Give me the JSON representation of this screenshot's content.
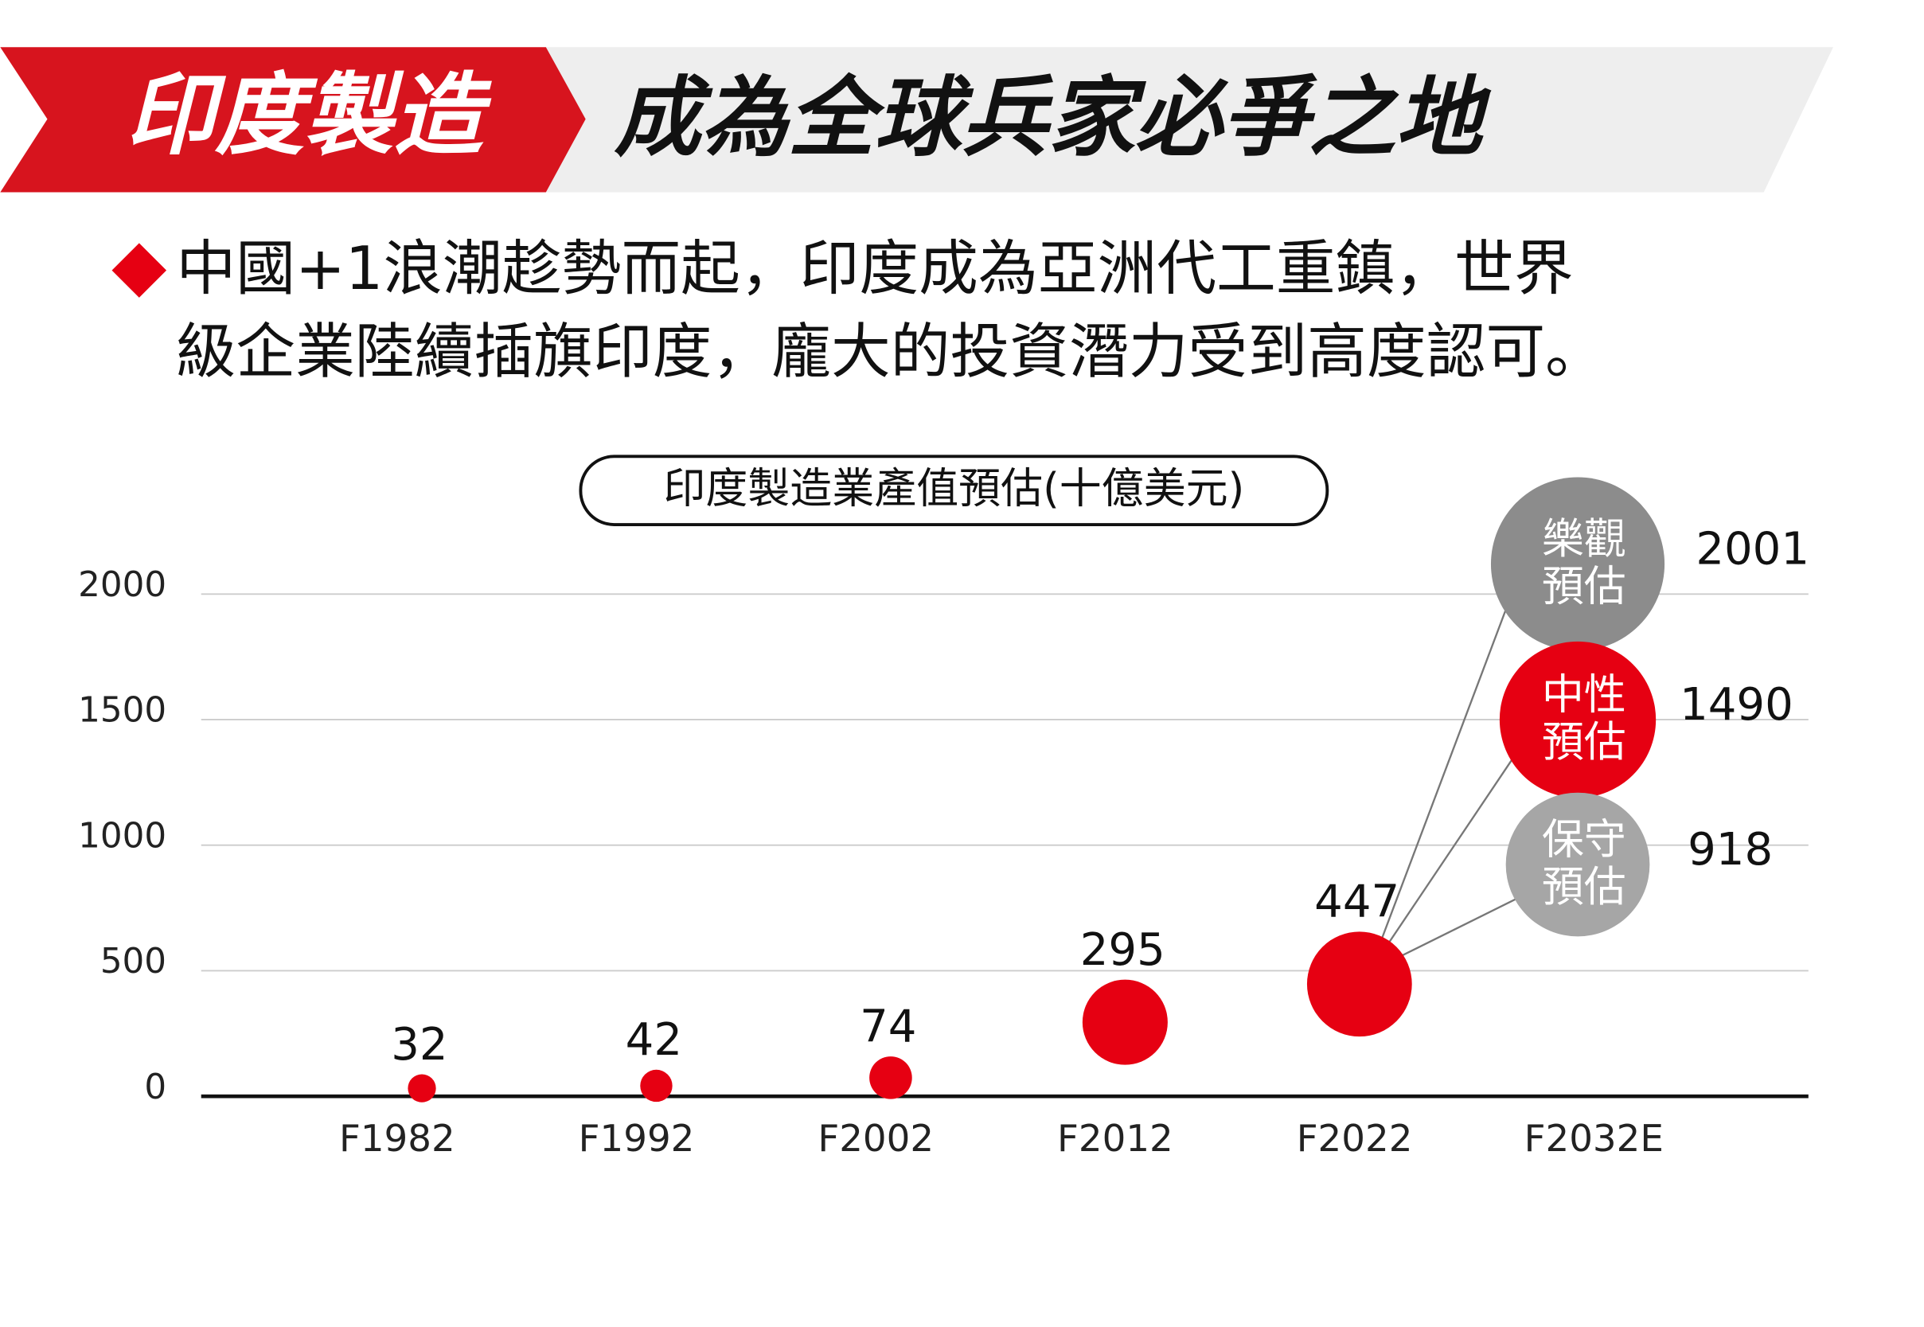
{
  "header": {
    "tag": "印度製造",
    "title": "成為全球兵家必爭之地"
  },
  "bullet": [
    "中國+1浪潮趁勢而起，印度成為亞洲代工重鎮，世界",
    "級企業陸續插旗印度，龐大的投資潛力受到高度認可。"
  ],
  "chart_data": {
    "type": "bubble",
    "title": "印度製造業產值預估(十億美元)",
    "categories": [
      "F1982",
      "F1992",
      "F2002",
      "F2012",
      "F2022",
      "F2032E"
    ],
    "values": [
      32,
      42,
      74,
      295,
      447,
      null
    ],
    "color": "#e60012",
    "ylim": [
      0,
      2000
    ],
    "yticks": [
      0,
      500,
      1000,
      1500,
      2000
    ],
    "grid": true,
    "scenarios": [
      {
        "name": [
          "樂觀",
          "預估"
        ],
        "value": 2001,
        "color": "#8c8c8c"
      },
      {
        "name": [
          "中性",
          "預估"
        ],
        "value": 1490,
        "color": "#e60012"
      },
      {
        "name": [
          "保守",
          "預估"
        ],
        "value": 918,
        "color": "#a6a6a6"
      }
    ]
  }
}
